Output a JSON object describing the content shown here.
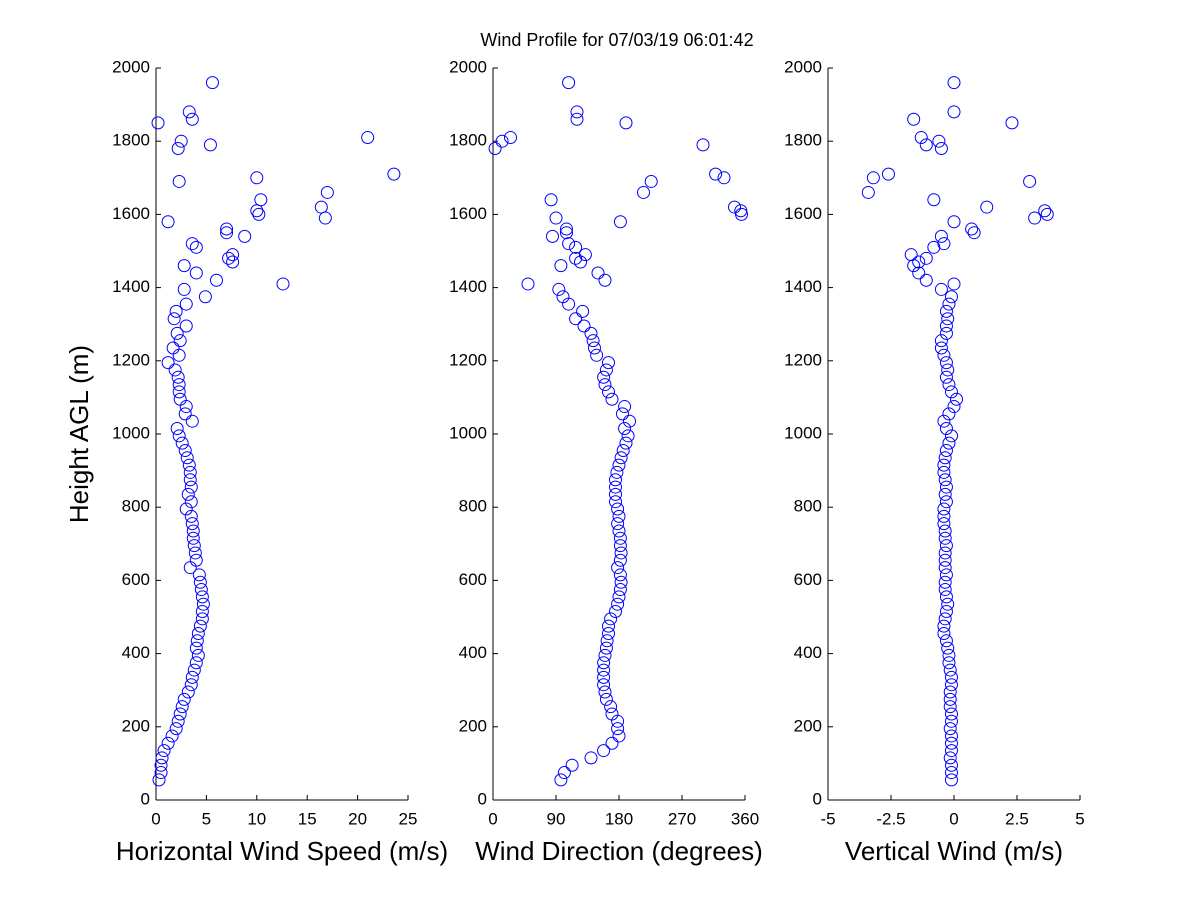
{
  "figure_title": "Wind Profile for  07/03/19 06:01:42",
  "chart_data": [
    {
      "type": "scatter",
      "xlabel": "Horizontal Wind Speed (m/s)",
      "ylabel": "Height AGL (m)",
      "color": "#0000ff",
      "xlim": [
        0,
        25
      ],
      "xticks": [
        0,
        5,
        10,
        15,
        20,
        25
      ],
      "ylim": [
        0,
        2000
      ],
      "yticks": [
        0,
        200,
        400,
        600,
        800,
        1000,
        1200,
        1400,
        1600,
        1800,
        2000
      ],
      "x": [
        0.3,
        0.5,
        0.5,
        0.6,
        0.8,
        1.2,
        1.6,
        2.0,
        2.2,
        2.4,
        2.6,
        2.8,
        3.2,
        3.5,
        3.6,
        3.8,
        4.0,
        4.2,
        4.0,
        4.1,
        4.2,
        4.4,
        4.6,
        4.6,
        4.7,
        4.6,
        4.5,
        4.4,
        4.3,
        3.4,
        4.0,
        3.9,
        3.8,
        3.7,
        3.7,
        3.6,
        3.5,
        3.0,
        3.5,
        3.2,
        3.5,
        3.4,
        3.4,
        3.3,
        3.1,
        2.9,
        2.6,
        2.3,
        2.1,
        3.6,
        2.9,
        3.0,
        2.4,
        2.3,
        2.3,
        2.2,
        1.9,
        1.2,
        2.3,
        1.7,
        2.4,
        2.1,
        3.0,
        1.8,
        2.0,
        3.0,
        4.9,
        2.8,
        12.6,
        6,
        4,
        2.8,
        7.6,
        7.2,
        7.6,
        4,
        3.6,
        8.8,
        7,
        7,
        1.2,
        16.8,
        10.2,
        10,
        16.4,
        10.4,
        17,
        2.3,
        10,
        23.6,
        2.2,
        5.4,
        2.5,
        21,
        0.2,
        3.6,
        3.3,
        5.6
      ],
      "y": [
        55,
        75,
        95,
        115,
        135,
        155,
        175,
        195,
        215,
        235,
        255,
        275,
        295,
        315,
        335,
        355,
        375,
        395,
        415,
        435,
        455,
        475,
        495,
        515,
        535,
        555,
        575,
        595,
        615,
        635,
        655,
        675,
        695,
        715,
        735,
        755,
        775,
        795,
        815,
        835,
        855,
        875,
        895,
        915,
        935,
        955,
        975,
        995,
        1015,
        1035,
        1055,
        1075,
        1095,
        1115,
        1135,
        1155,
        1175,
        1195,
        1215,
        1235,
        1255,
        1275,
        1295,
        1315,
        1335,
        1355,
        1375,
        1395,
        1410,
        1420,
        1440,
        1460,
        1470,
        1480,
        1490,
        1510,
        1520,
        1540,
        1550,
        1560,
        1580,
        1590,
        1600,
        1610,
        1620,
        1640,
        1660,
        1690,
        1700,
        1710,
        1780,
        1790,
        1800,
        1810,
        1850,
        1860,
        1880,
        1960
      ]
    },
    {
      "type": "scatter",
      "xlabel": "Wind Direction (degrees)",
      "color": "#0000ff",
      "xlim": [
        0,
        360
      ],
      "xticks": [
        0,
        90,
        180,
        270,
        360
      ],
      "ylim": [
        0,
        2000
      ],
      "yticks": [
        0,
        200,
        400,
        600,
        800,
        1000,
        1200,
        1400,
        1600,
        1800,
        2000
      ],
      "x": [
        97,
        102,
        113,
        140,
        158,
        170,
        180,
        178,
        178,
        170,
        168,
        162,
        160,
        158,
        158,
        158,
        158,
        160,
        162,
        163,
        165,
        165,
        168,
        175,
        178,
        180,
        182,
        183,
        182,
        178,
        182,
        183,
        182,
        182,
        180,
        178,
        180,
        178,
        175,
        175,
        175,
        175,
        177,
        180,
        183,
        186,
        190,
        193,
        188,
        195,
        185,
        188,
        170,
        165,
        160,
        158,
        162,
        165,
        148,
        145,
        143,
        140,
        130,
        118,
        128,
        108,
        100,
        94,
        50,
        160,
        150,
        97,
        125,
        118,
        132,
        118,
        108,
        85,
        105,
        105,
        182,
        90,
        355,
        354,
        345,
        83,
        215,
        226,
        330,
        318,
        3,
        300,
        13,
        25,
        190,
        120,
        120,
        108
      ],
      "y": [
        55,
        75,
        95,
        115,
        135,
        155,
        175,
        195,
        215,
        235,
        255,
        275,
        295,
        315,
        335,
        355,
        375,
        395,
        415,
        435,
        455,
        475,
        495,
        515,
        535,
        555,
        575,
        595,
        615,
        635,
        655,
        675,
        695,
        715,
        735,
        755,
        775,
        795,
        815,
        835,
        855,
        875,
        895,
        915,
        935,
        955,
        975,
        995,
        1015,
        1035,
        1055,
        1075,
        1095,
        1115,
        1135,
        1155,
        1175,
        1195,
        1215,
        1235,
        1255,
        1275,
        1295,
        1315,
        1335,
        1355,
        1375,
        1395,
        1410,
        1420,
        1440,
        1460,
        1470,
        1480,
        1490,
        1510,
        1520,
        1540,
        1550,
        1560,
        1580,
        1590,
        1600,
        1610,
        1620,
        1640,
        1660,
        1690,
        1700,
        1710,
        1780,
        1790,
        1800,
        1810,
        1850,
        1860,
        1880,
        1960
      ]
    },
    {
      "type": "scatter",
      "xlabel": "Vertical Wind (m/s)",
      "color": "#0000ff",
      "xlim": [
        -5,
        5
      ],
      "xticks": [
        -5,
        -2.5,
        0,
        2.5,
        5
      ],
      "ylim": [
        0,
        2000
      ],
      "yticks": [
        0,
        200,
        400,
        600,
        800,
        1000,
        1200,
        1400,
        1600,
        1800,
        2000
      ],
      "x": [
        -0.1,
        -0.1,
        -0.1,
        -0.15,
        -0.1,
        -0.1,
        -0.1,
        -0.15,
        -0.1,
        -0.1,
        -0.15,
        -0.15,
        -0.15,
        -0.1,
        -0.1,
        -0.15,
        -0.2,
        -0.2,
        -0.25,
        -0.3,
        -0.4,
        -0.4,
        -0.35,
        -0.3,
        -0.25,
        -0.3,
        -0.35,
        -0.35,
        -0.3,
        -0.35,
        -0.35,
        -0.35,
        -0.3,
        -0.35,
        -0.35,
        -0.4,
        -0.4,
        -0.4,
        -0.3,
        -0.35,
        -0.3,
        -0.35,
        -0.4,
        -0.4,
        -0.35,
        -0.3,
        -0.2,
        -0.1,
        -0.3,
        -0.4,
        -0.2,
        0,
        0.1,
        -0.1,
        -0.2,
        -0.3,
        -0.25,
        -0.3,
        -0.4,
        -0.5,
        -0.5,
        -0.3,
        -0.3,
        -0.25,
        -0.3,
        -0.2,
        -0.1,
        -0.5,
        0,
        -1.1,
        -1.4,
        -1.6,
        -1.4,
        -1.1,
        -1.7,
        -0.8,
        -0.4,
        -0.5,
        0.8,
        0.7,
        0,
        3.2,
        3.7,
        3.6,
        1.3,
        -0.8,
        -3.4,
        3.0,
        -3.2,
        -2.6,
        -0.5,
        -1.1,
        -0.6,
        -1.3,
        2.3,
        -1.6,
        0,
        0
      ],
      "y": [
        55,
        75,
        95,
        115,
        135,
        155,
        175,
        195,
        215,
        235,
        255,
        275,
        295,
        315,
        335,
        355,
        375,
        395,
        415,
        435,
        455,
        475,
        495,
        515,
        535,
        555,
        575,
        595,
        615,
        635,
        655,
        675,
        695,
        715,
        735,
        755,
        775,
        795,
        815,
        835,
        855,
        875,
        895,
        915,
        935,
        955,
        975,
        995,
        1015,
        1035,
        1055,
        1075,
        1095,
        1115,
        1135,
        1155,
        1175,
        1195,
        1215,
        1235,
        1255,
        1275,
        1295,
        1315,
        1335,
        1355,
        1375,
        1395,
        1410,
        1420,
        1440,
        1460,
        1470,
        1480,
        1490,
        1510,
        1520,
        1540,
        1550,
        1560,
        1580,
        1590,
        1600,
        1610,
        1620,
        1640,
        1660,
        1690,
        1700,
        1710,
        1780,
        1790,
        1800,
        1810,
        1850,
        1860,
        1880,
        1960
      ]
    }
  ]
}
